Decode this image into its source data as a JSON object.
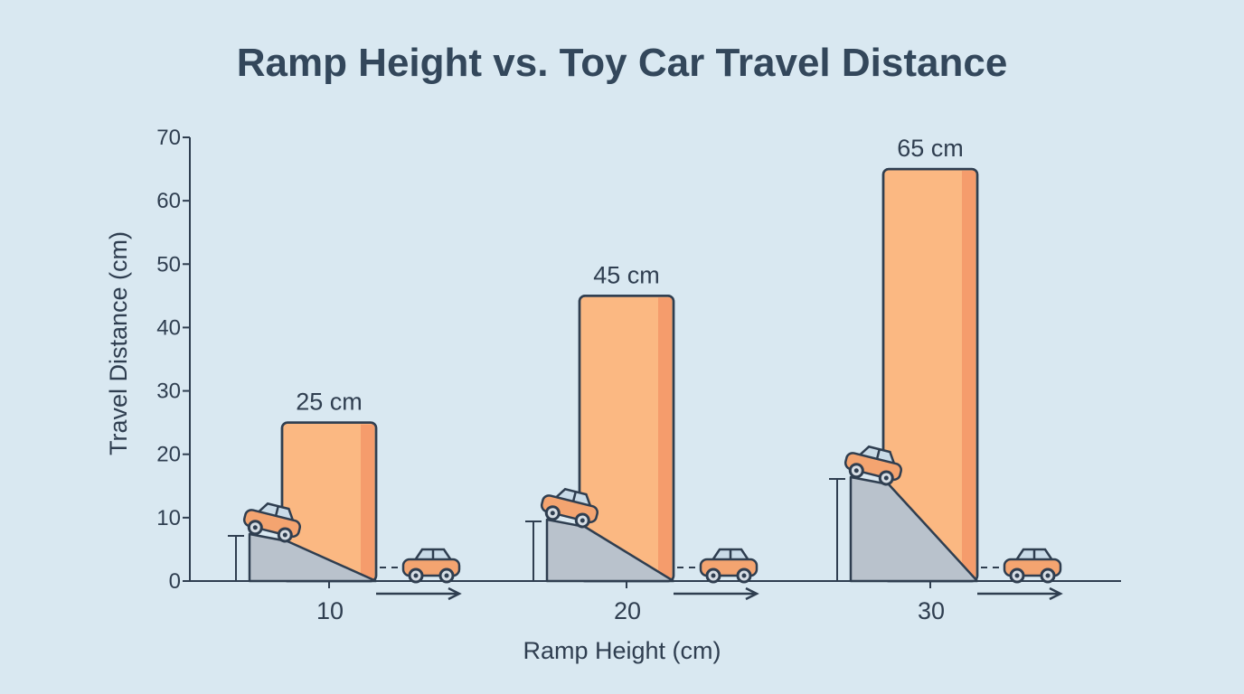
{
  "chart_data": {
    "type": "bar",
    "title": "Ramp Height vs. Toy Car Travel Distance",
    "xlabel": "Ramp Height (cm)",
    "ylabel": "Travel Distance (cm)",
    "categories": [
      "10",
      "20",
      "30"
    ],
    "values": [
      25,
      45,
      65
    ],
    "data_labels": [
      "25 cm",
      "45 cm",
      "65 cm"
    ],
    "ylim": [
      0,
      70
    ],
    "yticks": [
      "0",
      "10",
      "20",
      "30",
      "40",
      "50",
      "60",
      "70"
    ],
    "grid": false,
    "legend": "none",
    "colors": {
      "bar": "#fbb882",
      "bar_edge": "#f59c6c",
      "outline": "#2f3e50",
      "ramp": "#b9c2cc",
      "car": "#f4a470",
      "background": "#d9e8f1"
    },
    "decorations": [
      "ramp-icon",
      "toy-car-icon",
      "arrow-right-icon"
    ]
  }
}
